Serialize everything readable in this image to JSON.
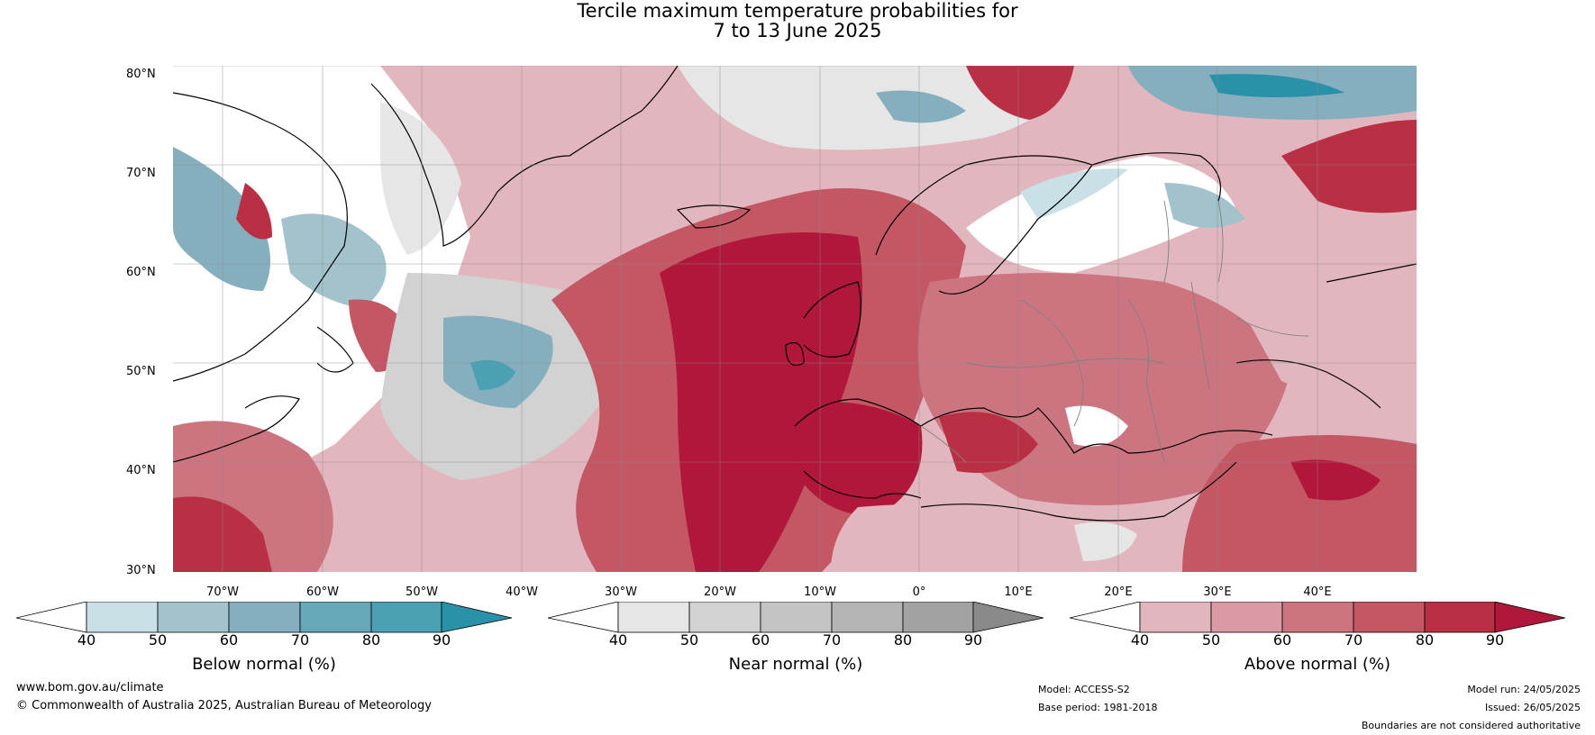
{
  "title": {
    "line1": "Tercile maximum temperature probabilities for",
    "line2": "7 to 13 June 2025"
  },
  "map": {
    "lat_labels": [
      "80°N",
      "70°N",
      "60°N",
      "50°N",
      "40°N",
      "30°N"
    ],
    "lon_labels": [
      "70°W",
      "60°W",
      "50°W",
      "40°W",
      "30°W",
      "20°W",
      "10°W",
      "0°",
      "10°E",
      "20°E",
      "30°E",
      "40°E"
    ],
    "lat_range": [
      30,
      80
    ],
    "lon_range": [
      -80,
      45
    ],
    "gridlines": true
  },
  "legend": {
    "below": {
      "title": "Below normal (%)",
      "ticks": [
        "40",
        "50",
        "60",
        "70",
        "80",
        "90"
      ],
      "colors": [
        "#ffffff",
        "#c8e0e6",
        "#a2c3cb",
        "#85afbf",
        "#66a8b8",
        "#4ba0b4",
        "#2a92a8"
      ]
    },
    "near": {
      "title": "Near normal (%)",
      "ticks": [
        "40",
        "50",
        "60",
        "70",
        "80",
        "90"
      ],
      "colors": [
        "#ffffff",
        "#e6e6e6",
        "#d2d2d2",
        "#c3c3c3",
        "#b4b4b4",
        "#a2a2a2",
        "#8a8a8a"
      ]
    },
    "above": {
      "title": "Above normal (%)",
      "ticks": [
        "40",
        "50",
        "60",
        "70",
        "80",
        "90"
      ],
      "colors": [
        "#ffffff",
        "#e2b6be",
        "#d99aa4",
        "#cc7580",
        "#c35864",
        "#b93044",
        "#b0173a"
      ]
    }
  },
  "footer": {
    "website": "www.bom.gov.au/climate",
    "copyright": "© Commonwealth of Australia 2025, Australian Bureau of Meteorology",
    "model": "Model: ACCESS-S2",
    "base_period": "Base period: 1981-2018",
    "model_run": "Model run: 24/05/2025",
    "issued": "Issued: 26/05/2025",
    "disclaimer": "Boundaries are not considered authoritative"
  }
}
